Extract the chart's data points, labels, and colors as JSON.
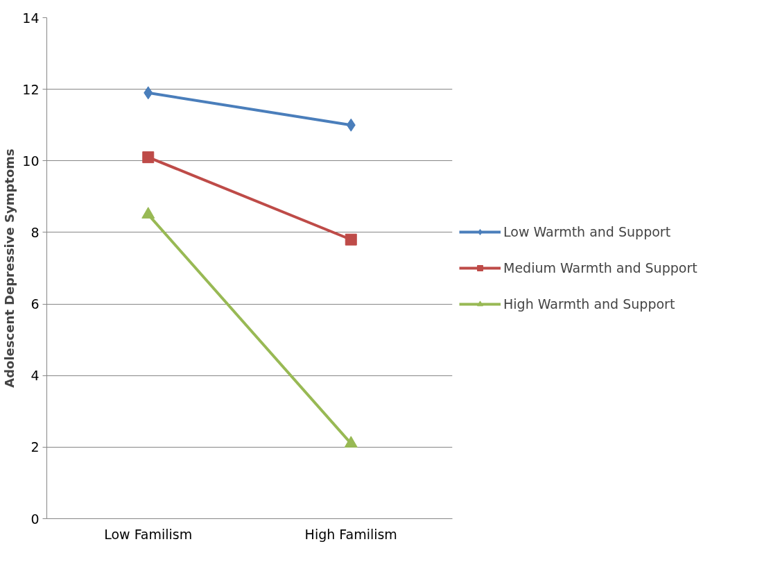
{
  "chart_data": {
    "type": "line",
    "ylabel": "Adolescent Depressive Symptoms",
    "categories": [
      "Low Familism",
      "High Familism"
    ],
    "series": [
      {
        "name": "Low Warmth and Support",
        "color": "#4a7ebb",
        "marker": "diamond",
        "values": [
          11.9,
          11.0
        ]
      },
      {
        "name": "Medium Warmth and Support",
        "color": "#be4b48",
        "marker": "square",
        "values": [
          10.1,
          7.8
        ]
      },
      {
        "name": "High Warmth and Support",
        "color": "#98b954",
        "marker": "triangle",
        "values": [
          8.5,
          2.1
        ]
      }
    ],
    "ylim": [
      0,
      14
    ],
    "yticks": [
      0,
      2,
      4,
      6,
      8,
      10,
      12,
      14
    ],
    "grid": "y",
    "legend": "right"
  }
}
